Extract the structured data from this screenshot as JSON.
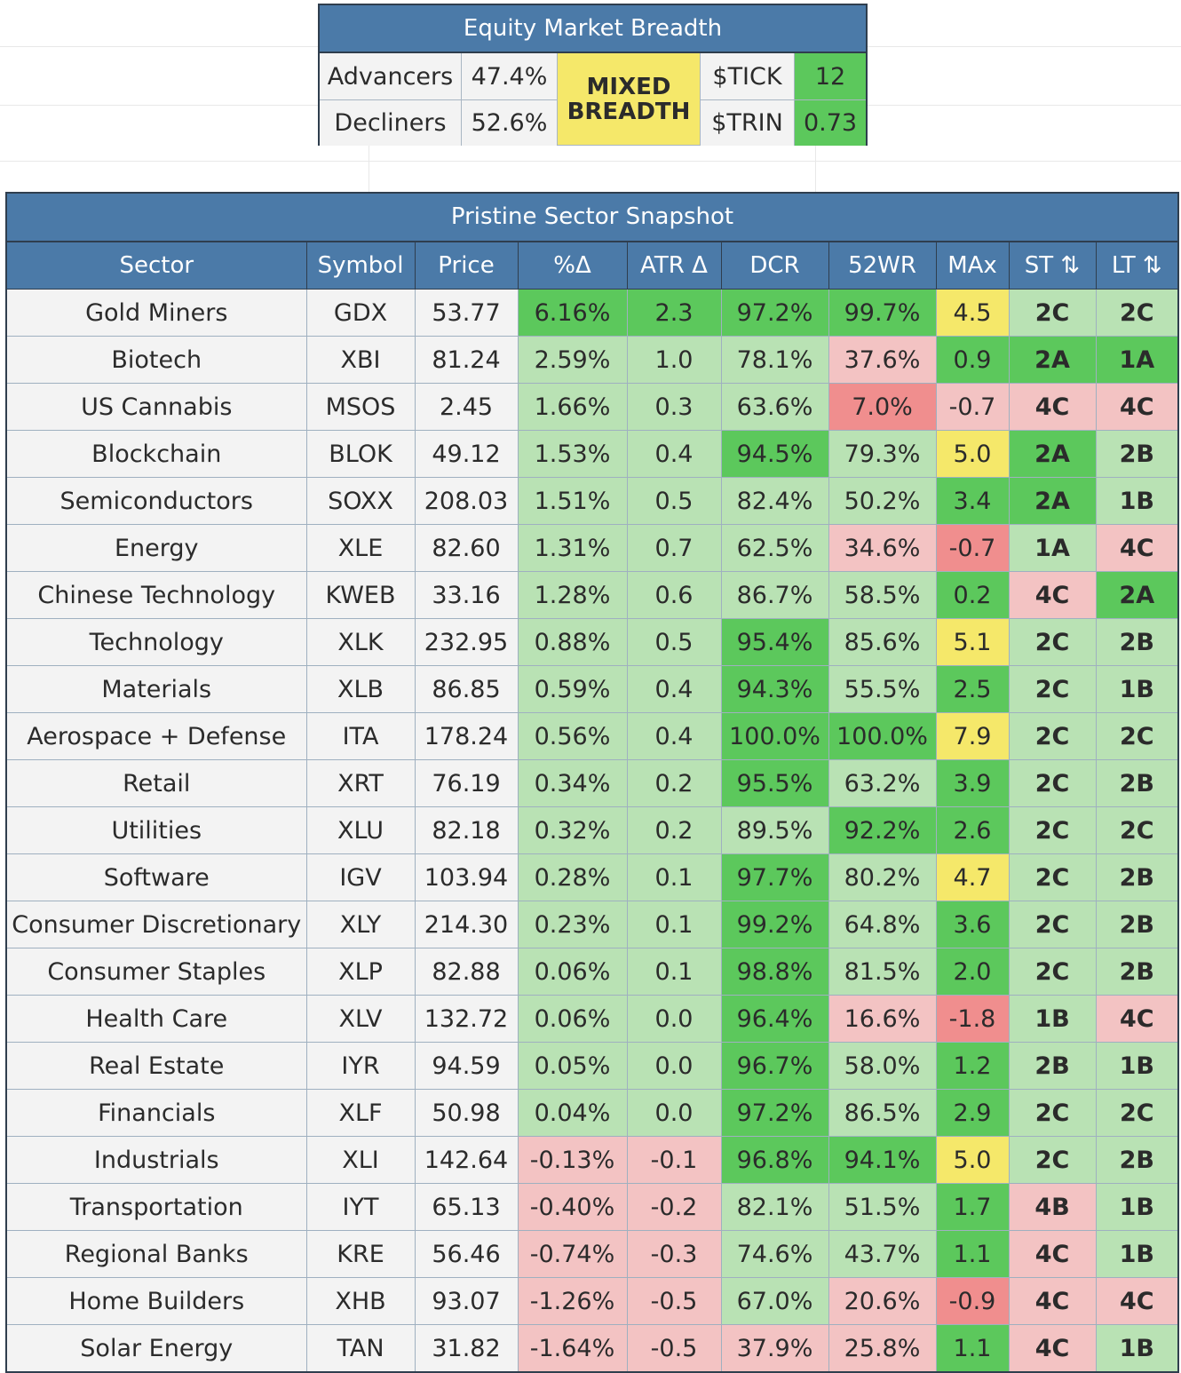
{
  "breadth": {
    "title": "Equity Market Breadth",
    "advancers_label": "Advancers",
    "advancers_value": "47.4%",
    "decliners_label": "Decliners",
    "decliners_value": "52.6%",
    "status_line1": "MIXED",
    "status_line2": "BREADTH",
    "tick_label": "$TICK",
    "tick_value": "12",
    "trin_label": "$TRIN",
    "trin_value": "0.73"
  },
  "snapshot": {
    "title": "Pristine Sector Snapshot",
    "columns": [
      "Sector",
      "Symbol",
      "Price",
      "%Δ",
      "ATR Δ",
      "DCR",
      "52WR",
      "MAx",
      "ST ⇅",
      "LT ⇅"
    ],
    "colors": {
      "light_green": "#b9e2b4",
      "green": "#5cc85c",
      "light_red": "#f3c3c3",
      "red": "#f08e8e",
      "yellow": "#f5e86a"
    },
    "rows": [
      {
        "sector": "Gold Miners",
        "symbol": "GDX",
        "price": "53.77",
        "pct": "6.16%",
        "atr": "2.3",
        "dcr": "97.2%",
        "wr52": "99.7%",
        "max": "4.5",
        "st": "2C",
        "lt": "2C",
        "cls": [
          "g",
          "g",
          "g",
          "g",
          "y",
          "lg",
          "lg"
        ]
      },
      {
        "sector": "Biotech",
        "symbol": "XBI",
        "price": "81.24",
        "pct": "2.59%",
        "atr": "1.0",
        "dcr": "78.1%",
        "wr52": "37.6%",
        "max": "0.9",
        "st": "2A",
        "lt": "1A",
        "cls": [
          "lg",
          "lg",
          "lg",
          "lr",
          "g",
          "g",
          "g"
        ]
      },
      {
        "sector": "US Cannabis",
        "symbol": "MSOS",
        "price": "2.45",
        "pct": "1.66%",
        "atr": "0.3",
        "dcr": "63.6%",
        "wr52": "7.0%",
        "max": "-0.7",
        "st": "4C",
        "lt": "4C",
        "cls": [
          "lg",
          "lg",
          "lg",
          "r",
          "lr",
          "lr",
          "lr"
        ]
      },
      {
        "sector": "Blockchain",
        "symbol": "BLOK",
        "price": "49.12",
        "pct": "1.53%",
        "atr": "0.4",
        "dcr": "94.5%",
        "wr52": "79.3%",
        "max": "5.0",
        "st": "2A",
        "lt": "2B",
        "cls": [
          "lg",
          "lg",
          "g",
          "lg",
          "y",
          "g",
          "lg"
        ]
      },
      {
        "sector": "Semiconductors",
        "symbol": "SOXX",
        "price": "208.03",
        "pct": "1.51%",
        "atr": "0.5",
        "dcr": "82.4%",
        "wr52": "50.2%",
        "max": "3.4",
        "st": "2A",
        "lt": "1B",
        "cls": [
          "lg",
          "lg",
          "lg",
          "lg",
          "g",
          "g",
          "lg"
        ]
      },
      {
        "sector": "Energy",
        "symbol": "XLE",
        "price": "82.60",
        "pct": "1.31%",
        "atr": "0.7",
        "dcr": "62.5%",
        "wr52": "34.6%",
        "max": "-0.7",
        "st": "1A",
        "lt": "4C",
        "cls": [
          "lg",
          "lg",
          "lg",
          "lr",
          "r",
          "lg",
          "lr"
        ]
      },
      {
        "sector": "Chinese Technology",
        "symbol": "KWEB",
        "price": "33.16",
        "pct": "1.28%",
        "atr": "0.6",
        "dcr": "86.7%",
        "wr52": "58.5%",
        "max": "0.2",
        "st": "4C",
        "lt": "2A",
        "cls": [
          "lg",
          "lg",
          "lg",
          "lg",
          "g",
          "lr",
          "g"
        ]
      },
      {
        "sector": "Technology",
        "symbol": "XLK",
        "price": "232.95",
        "pct": "0.88%",
        "atr": "0.5",
        "dcr": "95.4%",
        "wr52": "85.6%",
        "max": "5.1",
        "st": "2C",
        "lt": "2B",
        "cls": [
          "lg",
          "lg",
          "g",
          "lg",
          "y",
          "lg",
          "lg"
        ]
      },
      {
        "sector": "Materials",
        "symbol": "XLB",
        "price": "86.85",
        "pct": "0.59%",
        "atr": "0.4",
        "dcr": "94.3%",
        "wr52": "55.5%",
        "max": "2.5",
        "st": "2C",
        "lt": "1B",
        "cls": [
          "lg",
          "lg",
          "g",
          "lg",
          "g",
          "lg",
          "lg"
        ]
      },
      {
        "sector": "Aerospace + Defense",
        "symbol": "ITA",
        "price": "178.24",
        "pct": "0.56%",
        "atr": "0.4",
        "dcr": "100.0%",
        "wr52": "100.0%",
        "max": "7.9",
        "st": "2C",
        "lt": "2C",
        "cls": [
          "lg",
          "lg",
          "g",
          "g",
          "y",
          "lg",
          "lg"
        ]
      },
      {
        "sector": "Retail",
        "symbol": "XRT",
        "price": "76.19",
        "pct": "0.34%",
        "atr": "0.2",
        "dcr": "95.5%",
        "wr52": "63.2%",
        "max": "3.9",
        "st": "2C",
        "lt": "2B",
        "cls": [
          "lg",
          "lg",
          "g",
          "lg",
          "g",
          "lg",
          "lg"
        ]
      },
      {
        "sector": "Utilities",
        "symbol": "XLU",
        "price": "82.18",
        "pct": "0.32%",
        "atr": "0.2",
        "dcr": "89.5%",
        "wr52": "92.2%",
        "max": "2.6",
        "st": "2C",
        "lt": "2C",
        "cls": [
          "lg",
          "lg",
          "lg",
          "g",
          "g",
          "lg",
          "lg"
        ]
      },
      {
        "sector": "Software",
        "symbol": "IGV",
        "price": "103.94",
        "pct": "0.28%",
        "atr": "0.1",
        "dcr": "97.7%",
        "wr52": "80.2%",
        "max": "4.7",
        "st": "2C",
        "lt": "2B",
        "cls": [
          "lg",
          "lg",
          "g",
          "lg",
          "y",
          "lg",
          "lg"
        ]
      },
      {
        "sector": "Consumer Discretionary",
        "symbol": "XLY",
        "price": "214.30",
        "pct": "0.23%",
        "atr": "0.1",
        "dcr": "99.2%",
        "wr52": "64.8%",
        "max": "3.6",
        "st": "2C",
        "lt": "2B",
        "cls": [
          "lg",
          "lg",
          "g",
          "lg",
          "g",
          "lg",
          "lg"
        ]
      },
      {
        "sector": "Consumer Staples",
        "symbol": "XLP",
        "price": "82.88",
        "pct": "0.06%",
        "atr": "0.1",
        "dcr": "98.8%",
        "wr52": "81.5%",
        "max": "2.0",
        "st": "2C",
        "lt": "2B",
        "cls": [
          "lg",
          "lg",
          "g",
          "lg",
          "g",
          "lg",
          "lg"
        ]
      },
      {
        "sector": "Health Care",
        "symbol": "XLV",
        "price": "132.72",
        "pct": "0.06%",
        "atr": "0.0",
        "dcr": "96.4%",
        "wr52": "16.6%",
        "max": "-1.8",
        "st": "1B",
        "lt": "4C",
        "cls": [
          "lg",
          "lg",
          "g",
          "lr",
          "r",
          "lg",
          "lr"
        ]
      },
      {
        "sector": "Real Estate",
        "symbol": "IYR",
        "price": "94.59",
        "pct": "0.05%",
        "atr": "0.0",
        "dcr": "96.7%",
        "wr52": "58.0%",
        "max": "1.2",
        "st": "2B",
        "lt": "1B",
        "cls": [
          "lg",
          "lg",
          "g",
          "lg",
          "g",
          "lg",
          "lg"
        ]
      },
      {
        "sector": "Financials",
        "symbol": "XLF",
        "price": "50.98",
        "pct": "0.04%",
        "atr": "0.0",
        "dcr": "97.2%",
        "wr52": "86.5%",
        "max": "2.9",
        "st": "2C",
        "lt": "2C",
        "cls": [
          "lg",
          "lg",
          "g",
          "lg",
          "g",
          "lg",
          "lg"
        ]
      },
      {
        "sector": "Industrials",
        "symbol": "XLI",
        "price": "142.64",
        "pct": "-0.13%",
        "atr": "-0.1",
        "dcr": "96.8%",
        "wr52": "94.1%",
        "max": "5.0",
        "st": "2C",
        "lt": "2B",
        "cls": [
          "lr",
          "lr",
          "g",
          "g",
          "y",
          "lg",
          "lg"
        ]
      },
      {
        "sector": "Transportation",
        "symbol": "IYT",
        "price": "65.13",
        "pct": "-0.40%",
        "atr": "-0.2",
        "dcr": "82.1%",
        "wr52": "51.5%",
        "max": "1.7",
        "st": "4B",
        "lt": "1B",
        "cls": [
          "lr",
          "lr",
          "lg",
          "lg",
          "g",
          "lr",
          "lg"
        ]
      },
      {
        "sector": "Regional Banks",
        "symbol": "KRE",
        "price": "56.46",
        "pct": "-0.74%",
        "atr": "-0.3",
        "dcr": "74.6%",
        "wr52": "43.7%",
        "max": "1.1",
        "st": "4C",
        "lt": "1B",
        "cls": [
          "lr",
          "lr",
          "lg",
          "lg",
          "g",
          "lr",
          "lg"
        ]
      },
      {
        "sector": "Home Builders",
        "symbol": "XHB",
        "price": "93.07",
        "pct": "-1.26%",
        "atr": "-0.5",
        "dcr": "67.0%",
        "wr52": "20.6%",
        "max": "-0.9",
        "st": "4C",
        "lt": "4C",
        "cls": [
          "lr",
          "lr",
          "lg",
          "lr",
          "r",
          "lr",
          "lr"
        ]
      },
      {
        "sector": "Solar Energy",
        "symbol": "TAN",
        "price": "31.82",
        "pct": "-1.64%",
        "atr": "-0.5",
        "dcr": "37.9%",
        "wr52": "25.8%",
        "max": "1.1",
        "st": "4C",
        "lt": "1B",
        "cls": [
          "lr",
          "lr",
          "lr",
          "lr",
          "g",
          "lr",
          "lg"
        ]
      }
    ]
  }
}
